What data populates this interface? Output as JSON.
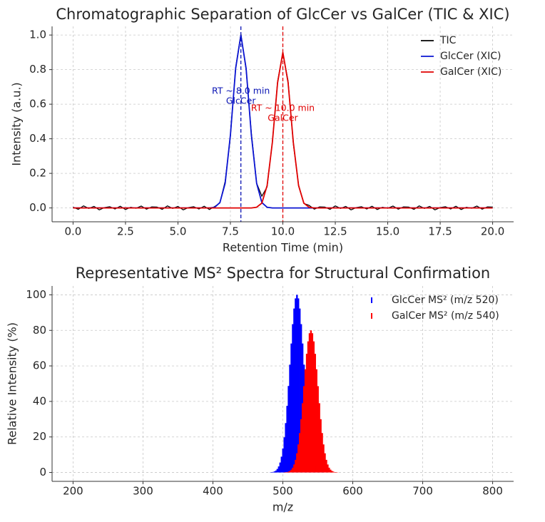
{
  "chart_data": [
    {
      "type": "line",
      "title": "Chromatographic Separation of GlcCer vs GalCer (TIC & XIC)",
      "x_label": "Retention Time (min)",
      "y_label": "Intensity (a.u.)",
      "x": [
        0,
        0.25,
        0.5,
        0.75,
        1,
        1.25,
        1.5,
        1.75,
        2,
        2.25,
        2.5,
        2.75,
        3,
        3.25,
        3.5,
        3.75,
        4,
        4.25,
        4.5,
        4.75,
        5,
        5.25,
        5.5,
        5.75,
        6,
        6.25,
        6.5,
        6.75,
        7,
        7.25,
        7.5,
        7.75,
        8,
        8.25,
        8.5,
        8.75,
        9,
        9.25,
        9.5,
        9.75,
        10,
        10.25,
        10.5,
        10.75,
        11,
        11.25,
        11.5,
        11.75,
        12,
        12.25,
        12.5,
        12.75,
        13,
        13.25,
        13.5,
        13.75,
        14,
        14.25,
        14.5,
        14.75,
        15,
        15.25,
        15.5,
        15.75,
        16,
        16.25,
        16.5,
        16.75,
        17,
        17.25,
        17.5,
        17.75,
        18,
        18.25,
        18.5,
        18.75,
        19,
        19.25,
        19.5,
        19.75,
        20
      ],
      "series": [
        {
          "name": "TIC",
          "color": "#000000",
          "values": [
            0.005,
            -0.008,
            0.012,
            -0.003,
            0.009,
            -0.011,
            0.002,
            0.007,
            -0.006,
            0.01,
            -0.009,
            0.004,
            -0.002,
            0.011,
            -0.007,
            0.006,
            0.005,
            -0.008,
            0.012,
            -0.003,
            0.009,
            -0.011,
            0.002,
            0.007,
            -0.006,
            0.01,
            -0.009,
            0.008,
            0.029,
            0.154,
            0.414,
            0.812,
            1.005,
            0.798,
            0.433,
            0.144,
            0.068,
            0.122,
            0.381,
            0.732,
            0.894,
            0.735,
            0.37,
            0.133,
            0.026,
            0.015,
            -0.007,
            0.006,
            0.005,
            -0.008,
            0.012,
            -0.003,
            0.009,
            -0.011,
            0.002,
            0.007,
            -0.006,
            0.01,
            -0.009,
            0.004,
            -0.002,
            0.011,
            -0.007,
            0.006,
            0.005,
            -0.008,
            0.012,
            -0.003,
            0.009,
            -0.011,
            0.002,
            0.007,
            -0.006,
            0.01,
            -0.009,
            0.004,
            -0.002,
            0.011,
            -0.007,
            0.006,
            0.005
          ]
        },
        {
          "name": "GlcCer (XIC)",
          "color": "#0a14d2",
          "values": [
            0,
            0,
            0,
            0,
            0,
            0,
            0,
            0,
            0,
            0,
            0,
            0,
            0,
            0,
            0,
            0,
            0,
            0,
            0,
            0,
            0,
            0,
            0,
            0,
            0,
            0,
            0,
            0.004,
            0.031,
            0.143,
            0.421,
            0.806,
            1,
            0.806,
            0.421,
            0.143,
            0.031,
            0.004,
            0,
            0,
            0,
            0,
            0,
            0,
            0,
            0,
            0,
            0,
            0,
            0,
            0,
            0,
            0,
            0,
            0,
            0,
            0,
            0,
            0,
            0,
            0,
            0,
            0,
            0,
            0,
            0,
            0,
            0,
            0,
            0,
            0,
            0,
            0,
            0,
            0,
            0,
            0,
            0,
            0,
            0,
            0
          ]
        },
        {
          "name": "GalCer (XIC)",
          "color": "#e00000",
          "values": [
            0,
            0,
            0,
            0,
            0,
            0,
            0,
            0,
            0,
            0,
            0,
            0,
            0,
            0,
            0,
            0,
            0,
            0,
            0,
            0,
            0,
            0,
            0,
            0,
            0,
            0,
            0,
            0,
            0,
            0,
            0,
            0,
            0,
            0,
            0,
            0.004,
            0.028,
            0.129,
            0.379,
            0.725,
            0.9,
            0.725,
            0.379,
            0.129,
            0.028,
            0.004,
            0,
            0,
            0,
            0,
            0,
            0,
            0,
            0,
            0,
            0,
            0,
            0,
            0,
            0,
            0,
            0,
            0,
            0,
            0,
            0,
            0,
            0,
            0,
            0,
            0,
            0,
            0,
            0,
            0,
            0,
            0,
            0,
            0,
            0,
            0
          ]
        }
      ],
      "annotations": [
        {
          "text": [
            "RT ~ 8.0 min",
            "GlcCer"
          ],
          "x": 8,
          "y": 0.675,
          "color": "#0a14b4"
        },
        {
          "text": [
            "RT ~ 10.0 min",
            "GalCer"
          ],
          "x": 10,
          "y": 0.576,
          "color": "#e00000"
        }
      ],
      "xlim": [
        -1,
        21
      ],
      "ylim": [
        -0.08,
        1.05
      ],
      "xticks": [
        {
          "value": 0,
          "label": "0.0"
        },
        2.5,
        {
          "value": 5,
          "label": "5.0"
        },
        7.5,
        {
          "value": 10,
          "label": "10.0"
        },
        12.5,
        {
          "value": 15,
          "label": "15.0"
        },
        17.5,
        {
          "value": 20,
          "label": "20.0"
        }
      ],
      "yticks": [
        {
          "value": 0,
          "label": "0.0"
        },
        0.2,
        0.4,
        0.6,
        0.8,
        {
          "value": 1,
          "label": "1.0"
        }
      ],
      "grid": true,
      "legend": "upper right"
    },
    {
      "type": "stem",
      "title": "Representative MS² Spectra for Structural Confirmation",
      "x_label": "m/z",
      "y_label": "Relative Intensity (%)",
      "series": [
        {
          "name": "GlcCer MS² (m/z 520)",
          "color": "#0000ff",
          "x": [
            480,
            482,
            484,
            486,
            488,
            490,
            492,
            494,
            496,
            498,
            500,
            502,
            504,
            506,
            508,
            510,
            512,
            514,
            516,
            518,
            520,
            522,
            524,
            526,
            528,
            530,
            532,
            534,
            536,
            538,
            540,
            542,
            544,
            546,
            548,
            550,
            552,
            554,
            556,
            558,
            560
          ],
          "values": [
            0,
            0.1,
            0.2,
            0.3,
            0.6,
            1.1,
            2.0,
            3.4,
            5.6,
            8.9,
            13.5,
            19.8,
            27.8,
            37.5,
            48.7,
            60.7,
            72.6,
            83.5,
            92.3,
            98.0,
            100,
            98.0,
            92.3,
            83.5,
            72.6,
            60.7,
            48.7,
            37.5,
            27.8,
            19.8,
            13.5,
            8.9,
            5.6,
            3.4,
            2.0,
            1.1,
            0.6,
            0.3,
            0.2,
            0.1,
            0
          ]
        },
        {
          "name": "GalCer MS² (m/z 540)",
          "color": "#ff0000",
          "x": [
            500,
            502,
            504,
            506,
            508,
            510,
            512,
            514,
            516,
            518,
            520,
            522,
            524,
            526,
            528,
            530,
            532,
            534,
            536,
            538,
            540,
            542,
            544,
            546,
            548,
            550,
            552,
            554,
            556,
            558,
            560,
            562,
            564,
            566,
            568,
            570,
            572,
            574,
            576,
            578,
            580
          ],
          "values": [
            0,
            0.1,
            0.2,
            0.2,
            0.5,
            0.9,
            1.6,
            2.7,
            4.5,
            7.1,
            10.8,
            15.8,
            22.2,
            30.0,
            39.0,
            48.6,
            58.1,
            66.8,
            73.8,
            78.4,
            80,
            78.4,
            73.8,
            66.8,
            58.1,
            48.6,
            39.0,
            30.0,
            22.2,
            15.8,
            10.8,
            7.1,
            4.5,
            2.7,
            1.6,
            0.9,
            0.5,
            0.2,
            0.2,
            0.1,
            0
          ]
        }
      ],
      "xlim": [
        170,
        830
      ],
      "ylim": [
        -5,
        105
      ],
      "xticks": [
        200,
        300,
        400,
        500,
        600,
        700,
        800
      ],
      "yticks": [
        0,
        20,
        40,
        60,
        80,
        100
      ],
      "grid": true,
      "legend": "upper right"
    }
  ]
}
